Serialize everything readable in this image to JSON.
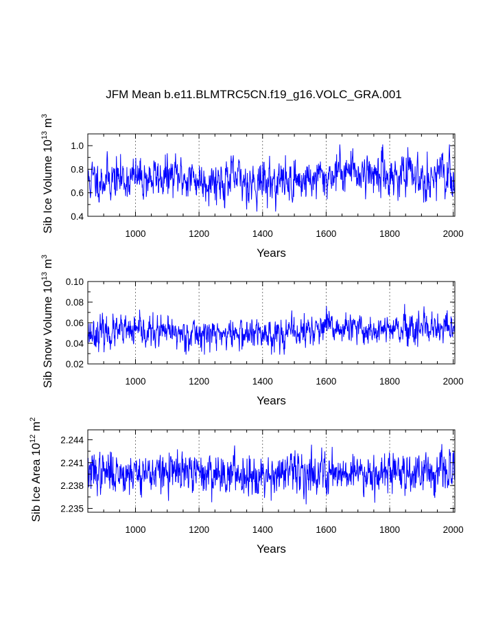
{
  "title": "JFM Mean b.e11.BLMTRC5CN.f19_g16.VOLC_GRA.001",
  "colors": {
    "series": "#0000ff",
    "axis": "#000000",
    "grid": "#555555"
  },
  "chart_data": [
    {
      "type": "line",
      "name": "sib-ice-volume",
      "ylabel_main": "Sib Ice Volume 10",
      "ylabel_exp": "13",
      "ylabel_unit": " m",
      "ylabel_unit_exp": "3",
      "xlabel": "Years",
      "xlim": [
        850,
        2005
      ],
      "ylim": [
        0.4,
        1.1
      ],
      "xticks": [
        1000,
        1200,
        1400,
        1600,
        1800,
        2000
      ],
      "xtick_labels": [
        "1000",
        "1200",
        "1400",
        "1600",
        "1800",
        "2000"
      ],
      "yticks": [
        0.4,
        0.6,
        0.8,
        1.0
      ],
      "ytick_labels": [
        "0.4",
        "0.6",
        "0.8",
        "1.0"
      ],
      "grid_x": [
        1000,
        1200,
        1400,
        1600,
        1800,
        2000
      ],
      "series": [
        {
          "name": "Sib Ice Volume",
          "x_start": 850,
          "x_end": 2005,
          "n": 1156,
          "seed": 11,
          "mean": 0.72,
          "std": 0.09,
          "ar": 0.45,
          "anchors": [
            [
              850,
              0.7
            ],
            [
              900,
              0.72
            ],
            [
              1000,
              0.72
            ],
            [
              1100,
              0.73
            ],
            [
              1150,
              0.73
            ],
            [
              1200,
              0.71
            ],
            [
              1300,
              0.71
            ],
            [
              1400,
              0.69
            ],
            [
              1500,
              0.7
            ],
            [
              1600,
              0.73
            ],
            [
              1650,
              0.8
            ],
            [
              1700,
              0.78
            ],
            [
              1800,
              0.75
            ],
            [
              1900,
              0.74
            ],
            [
              2005,
              0.74
            ]
          ],
          "min": 0.44,
          "max": 1.01
        }
      ]
    },
    {
      "type": "line",
      "name": "sib-snow-volume",
      "ylabel_main": "Sib Snow Volume 10",
      "ylabel_exp": "13",
      "ylabel_unit": " m",
      "ylabel_unit_exp": "3",
      "xlabel": "Years",
      "xlim": [
        850,
        2005
      ],
      "ylim": [
        0.02,
        0.1
      ],
      "xticks": [
        1000,
        1200,
        1400,
        1600,
        1800,
        2000
      ],
      "xtick_labels": [
        "1000",
        "1200",
        "1400",
        "1600",
        "1800",
        "2000"
      ],
      "yticks": [
        0.02,
        0.04,
        0.06,
        0.08,
        0.1
      ],
      "ytick_labels": [
        "0.02",
        "0.04",
        "0.06",
        "0.08",
        "0.10"
      ],
      "grid_x": [
        1000,
        1200,
        1400,
        1600,
        1800,
        2000
      ],
      "series": [
        {
          "name": "Sib Snow Volume",
          "x_start": 850,
          "x_end": 2005,
          "n": 1156,
          "seed": 23,
          "mean": 0.05,
          "std": 0.0075,
          "ar": 0.35,
          "anchors": [
            [
              850,
              0.05
            ],
            [
              1000,
              0.051
            ],
            [
              1200,
              0.049
            ],
            [
              1400,
              0.049
            ],
            [
              1500,
              0.05
            ],
            [
              1600,
              0.055
            ],
            [
              1700,
              0.053
            ],
            [
              1800,
              0.053
            ],
            [
              1900,
              0.051
            ],
            [
              2005,
              0.055
            ]
          ],
          "min": 0.029,
          "max": 0.096
        }
      ]
    },
    {
      "type": "line",
      "name": "sib-ice-area",
      "ylabel_main": "Sib Ice Area 10",
      "ylabel_exp": "12",
      "ylabel_unit": " m",
      "ylabel_unit_exp": "2",
      "xlabel": "Years",
      "xlim": [
        850,
        2005
      ],
      "ylim": [
        2.2345,
        2.2453
      ],
      "xticks": [
        1000,
        1200,
        1400,
        1600,
        1800,
        2000
      ],
      "xtick_labels": [
        "1000",
        "1200",
        "1400",
        "1600",
        "1800",
        "2000"
      ],
      "yticks": [
        2.235,
        2.238,
        2.241,
        2.244
      ],
      "ytick_labels": [
        "2.235",
        "2.238",
        "2.241",
        "2.244"
      ],
      "grid_x": [
        1000,
        1200,
        1400,
        1600,
        1800,
        2000
      ],
      "series": [
        {
          "name": "Sib Ice Area",
          "x_start": 850,
          "x_end": 2005,
          "n": 1156,
          "seed": 37,
          "mean": 2.2397,
          "std": 0.0013,
          "ar": 0.3,
          "anchors": [
            [
              850,
              2.2397
            ],
            [
              1000,
              2.2397
            ],
            [
              1200,
              2.2396
            ],
            [
              1400,
              2.2395
            ],
            [
              1600,
              2.2398
            ],
            [
              1800,
              2.2398
            ],
            [
              2005,
              2.2398
            ]
          ],
          "min": 2.2347,
          "max": 2.2443
        }
      ]
    }
  ]
}
